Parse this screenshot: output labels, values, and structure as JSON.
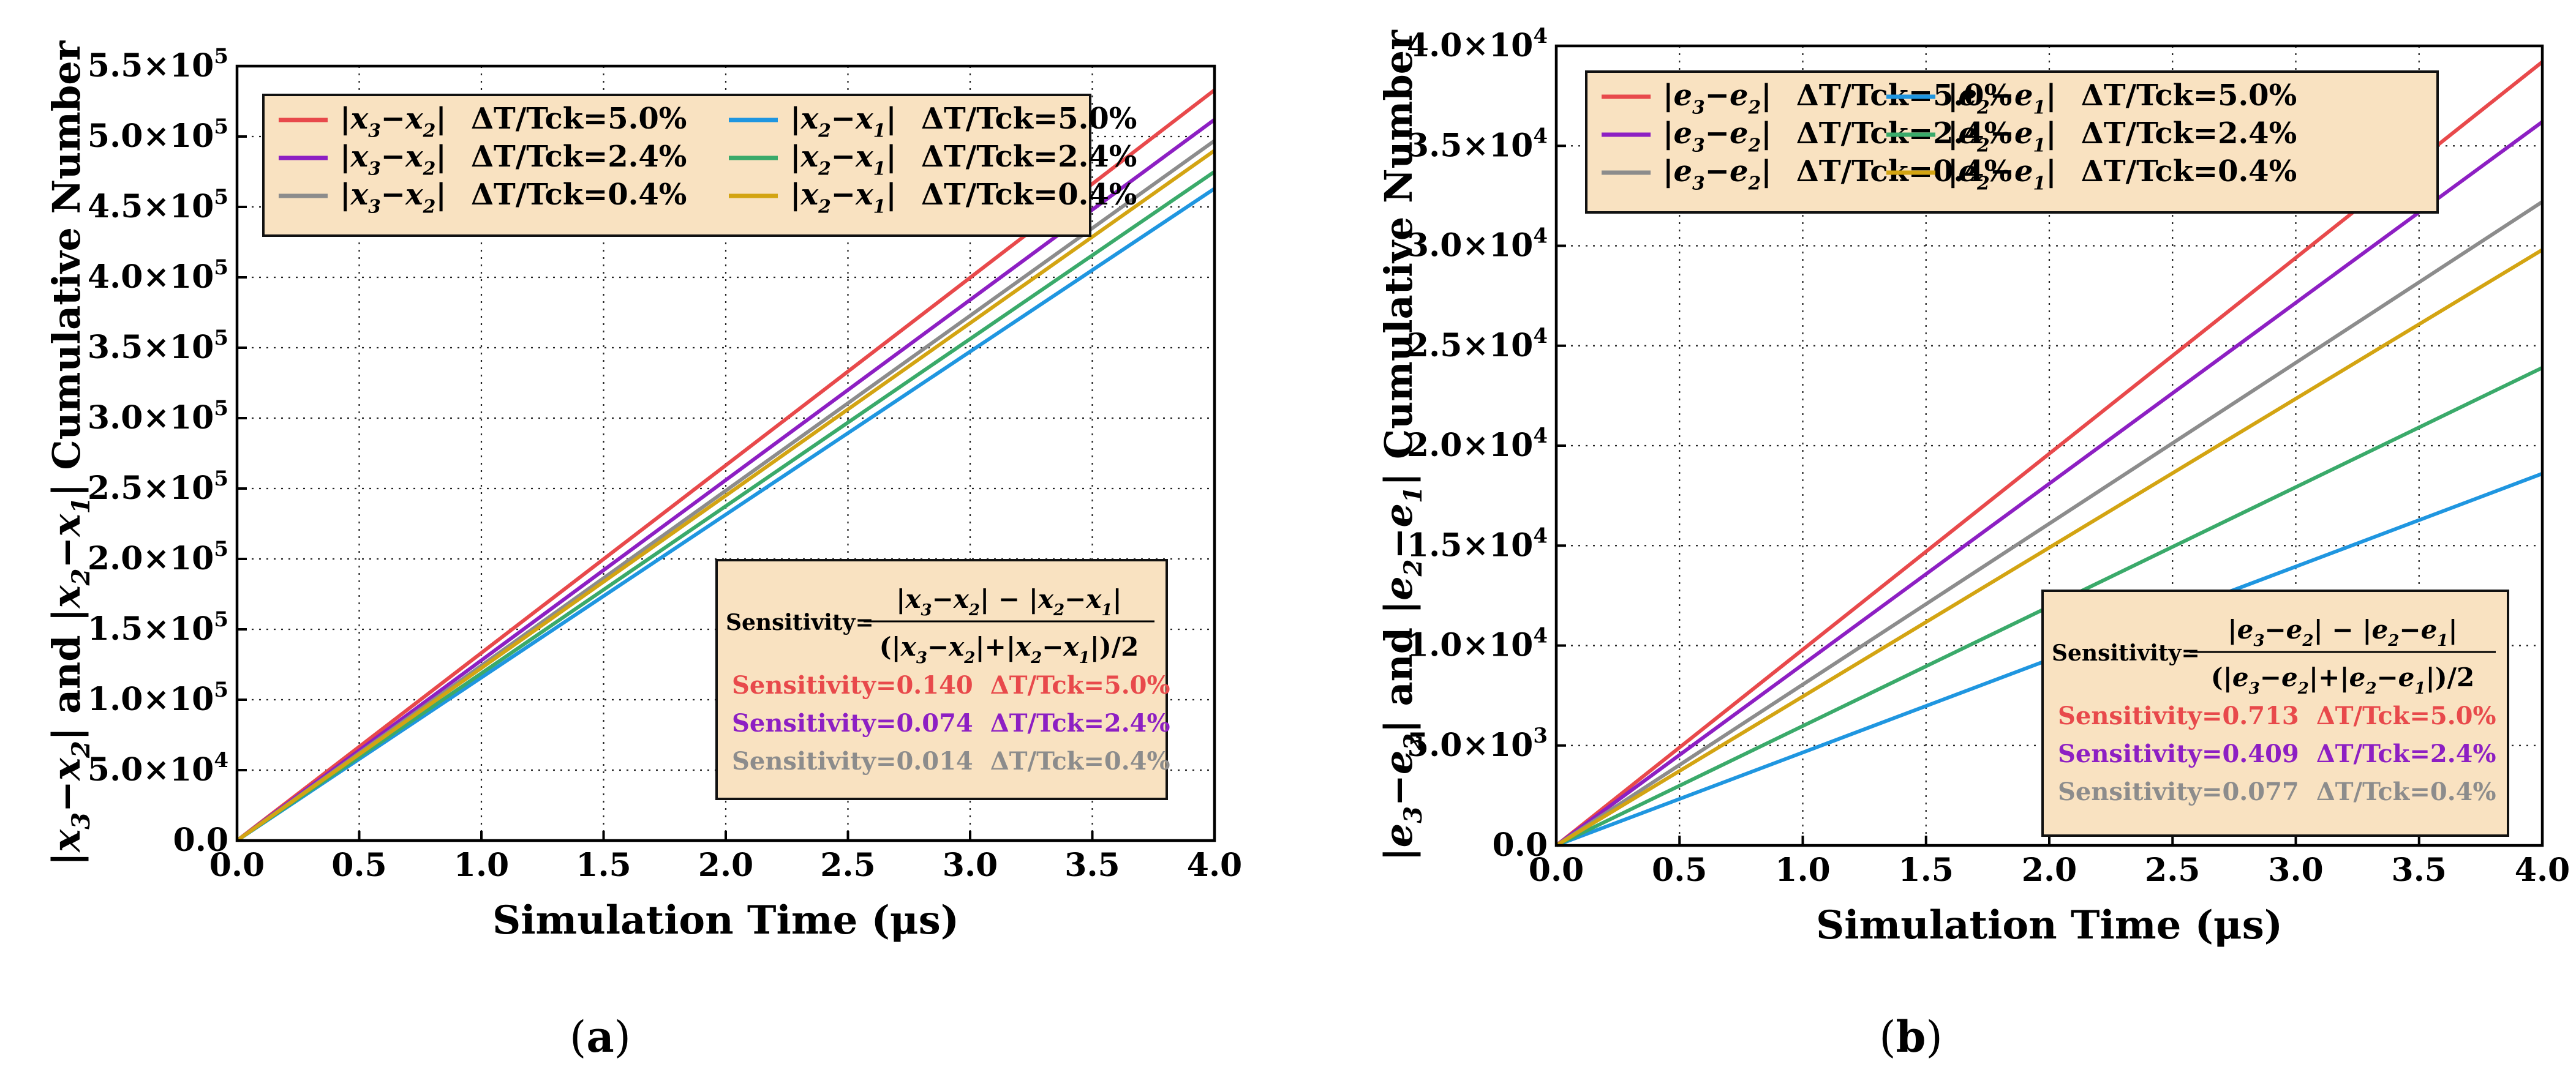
{
  "chart_data": [
    {
      "panel_label": "(a)",
      "type": "line",
      "xlabel": "Simulation Time (μs)",
      "ylabel": {
        "parts": [
          {
            "t": "|",
            "it": false
          },
          {
            "t": "x",
            "it": true
          },
          {
            "t": "3",
            "it": true,
            "sub": true
          },
          {
            "t": "−",
            "it": false
          },
          {
            "t": "x",
            "it": true
          },
          {
            "t": "2",
            "it": true,
            "sub": true
          },
          {
            "t": "| and |",
            "it": false
          },
          {
            "t": "x",
            "it": true
          },
          {
            "t": "2",
            "it": true,
            "sub": true
          },
          {
            "t": "−",
            "it": false
          },
          {
            "t": "x",
            "it": true
          },
          {
            "t": "1",
            "it": true,
            "sub": true
          },
          {
            "t": "| Cumulative Number",
            "it": false
          }
        ]
      },
      "xlim": [
        0,
        4
      ],
      "ylim": [
        0,
        550000
      ],
      "xticks": [
        0,
        0.5,
        1,
        1.5,
        2,
        2.5,
        3,
        3.5,
        4
      ],
      "xtick_labels": [
        "0.0",
        "0.5",
        "1.0",
        "1.5",
        "2.0",
        "2.5",
        "3.0",
        "3.5",
        "4.0"
      ],
      "yticks": [
        0,
        50000,
        100000,
        150000,
        200000,
        250000,
        300000,
        350000,
        400000,
        450000,
        500000,
        550000
      ],
      "ytick_labels": [
        {
          "m": "0.0",
          "e": ""
        },
        {
          "m": "5.0×10",
          "e": "4"
        },
        {
          "m": "1.0×10",
          "e": "5"
        },
        {
          "m": "1.5×10",
          "e": "5"
        },
        {
          "m": "2.0×10",
          "e": "5"
        },
        {
          "m": "2.5×10",
          "e": "5"
        },
        {
          "m": "3.0×10",
          "e": "5"
        },
        {
          "m": "3.5×10",
          "e": "5"
        },
        {
          "m": "4.0×10",
          "e": "5"
        },
        {
          "m": "4.5×10",
          "e": "5"
        },
        {
          "m": "5.0×10",
          "e": "5"
        },
        {
          "m": "5.5×10",
          "e": "5"
        }
      ],
      "grid": true,
      "legend_position": "top",
      "series": [
        {
          "legend": {
            "v1": "x",
            "s1": "3",
            "v2": "x",
            "s2": "2",
            "cond": "ΔT/Tck=5.0%"
          },
          "color": "#e8494b",
          "x": [
            0,
            4
          ],
          "y": [
            0,
            533000
          ]
        },
        {
          "legend": {
            "v1": "x",
            "s1": "3",
            "v2": "x",
            "s2": "2",
            "cond": "ΔT/Tck=2.4%"
          },
          "color": "#8d1fc3",
          "x": [
            0,
            4
          ],
          "y": [
            0,
            512000
          ]
        },
        {
          "legend": {
            "v1": "x",
            "s1": "3",
            "v2": "x",
            "s2": "2",
            "cond": "ΔT/Tck=0.4%"
          },
          "color": "#8c8c8c",
          "x": [
            0,
            4
          ],
          "y": [
            0,
            497000
          ]
        },
        {
          "legend": {
            "v1": "x",
            "s1": "2",
            "v2": "x",
            "s2": "1",
            "cond": "ΔT/Tck=5.0%"
          },
          "color": "#1f96e0",
          "x": [
            0,
            4
          ],
          "y": [
            0,
            463000
          ]
        },
        {
          "legend": {
            "v1": "x",
            "s1": "2",
            "v2": "x",
            "s2": "1",
            "cond": "ΔT/Tck=2.4%"
          },
          "color": "#3aaa6a",
          "x": [
            0,
            4
          ],
          "y": [
            0,
            475000
          ]
        },
        {
          "legend": {
            "v1": "x",
            "s1": "2",
            "v2": "x",
            "s2": "1",
            "cond": "ΔT/Tck=0.4%"
          },
          "color": "#d3a412",
          "x": [
            0,
            4
          ],
          "y": [
            0,
            490000
          ]
        }
      ],
      "sensitivity_box": {
        "prefix": "Sensitivity=",
        "numerator": {
          "v1": "x",
          "s1": "3",
          "v2": "x",
          "s2": "2",
          "v3": "x",
          "s3": "2",
          "v4": "x",
          "s4": "1"
        },
        "denominator": {
          "v1": "x",
          "s1": "3",
          "v2": "x",
          "s2": "2",
          "v3": "x",
          "s3": "2",
          "v4": "x",
          "s4": "1"
        },
        "values": [
          {
            "label": "Sensitivity=0.140",
            "cond": "ΔT/Tck=5.0%",
            "color": "#e8494b"
          },
          {
            "label": "Sensitivity=0.074",
            "cond": "ΔT/Tck=2.4%",
            "color": "#8d1fc3"
          },
          {
            "label": "Sensitivity=0.014",
            "cond": "ΔT/Tck=0.4%",
            "color": "#8c8c8c"
          }
        ]
      }
    },
    {
      "panel_label": "(b)",
      "type": "line",
      "xlabel": "Simulation Time (μs)",
      "ylabel": {
        "parts": [
          {
            "t": "|",
            "it": false
          },
          {
            "t": "e",
            "it": true
          },
          {
            "t": "3",
            "it": true,
            "sub": true
          },
          {
            "t": "−",
            "it": false
          },
          {
            "t": "e",
            "it": true
          },
          {
            "t": "2",
            "it": true,
            "sub": true
          },
          {
            "t": "| and |",
            "it": false
          },
          {
            "t": "e",
            "it": true
          },
          {
            "t": "2",
            "it": true,
            "sub": true
          },
          {
            "t": "−",
            "it": false
          },
          {
            "t": "e",
            "it": true
          },
          {
            "t": "1",
            "it": true,
            "sub": true
          },
          {
            "t": "| Cumulative Number",
            "it": false
          }
        ]
      },
      "xlim": [
        0,
        4
      ],
      "ylim": [
        0,
        40000
      ],
      "xticks": [
        0,
        0.5,
        1,
        1.5,
        2,
        2.5,
        3,
        3.5,
        4
      ],
      "xtick_labels": [
        "0.0",
        "0.5",
        "1.0",
        "1.5",
        "2.0",
        "2.5",
        "3.0",
        "3.5",
        "4.0"
      ],
      "yticks": [
        0,
        5000,
        10000,
        15000,
        20000,
        25000,
        30000,
        35000,
        40000
      ],
      "ytick_labels": [
        {
          "m": "0.0",
          "e": ""
        },
        {
          "m": "5.0×10",
          "e": "3"
        },
        {
          "m": "1.0×10",
          "e": "4"
        },
        {
          "m": "1.5×10",
          "e": "4"
        },
        {
          "m": "2.0×10",
          "e": "4"
        },
        {
          "m": "2.5×10",
          "e": "4"
        },
        {
          "m": "3.0×10",
          "e": "4"
        },
        {
          "m": "3.5×10",
          "e": "4"
        },
        {
          "m": "4.0×10",
          "e": "4"
        }
      ],
      "grid": true,
      "legend_position": "top",
      "series": [
        {
          "legend": {
            "v1": "e",
            "s1": "3",
            "v2": "e",
            "s2": "2",
            "cond": "ΔT/Tck=5.0%"
          },
          "color": "#e8494b",
          "x": [
            0,
            4
          ],
          "y": [
            0,
            39200
          ]
        },
        {
          "legend": {
            "v1": "e",
            "s1": "3",
            "v2": "e",
            "s2": "2",
            "cond": "ΔT/Tck=2.4%"
          },
          "color": "#8d1fc3",
          "x": [
            0,
            4
          ],
          "y": [
            0,
            36200
          ]
        },
        {
          "legend": {
            "v1": "e",
            "s1": "3",
            "v2": "e",
            "s2": "2",
            "cond": "ΔT/Tck=0.4%"
          },
          "color": "#8c8c8c",
          "x": [
            0,
            4
          ],
          "y": [
            0,
            32200
          ]
        },
        {
          "legend": {
            "v1": "e",
            "s1": "2",
            "v2": "e",
            "s2": "1",
            "cond": "ΔT/Tck=5.0%"
          },
          "color": "#1f96e0",
          "x": [
            0,
            4
          ],
          "y": [
            0,
            18600
          ]
        },
        {
          "legend": {
            "v1": "e",
            "s1": "2",
            "v2": "e",
            "s2": "1",
            "cond": "ΔT/Tck=2.4%"
          },
          "color": "#3aaa6a",
          "x": [
            0,
            4
          ],
          "y": [
            0,
            23900
          ]
        },
        {
          "legend": {
            "v1": "e",
            "s1": "2",
            "v2": "e",
            "s2": "1",
            "cond": "ΔT/Tck=0.4%"
          },
          "color": "#d3a412",
          "x": [
            0,
            4
          ],
          "y": [
            0,
            29800
          ]
        }
      ],
      "sensitivity_box": {
        "prefix": "Sensitivity=",
        "numerator": {
          "v1": "e",
          "s1": "3",
          "v2": "e",
          "s2": "2",
          "v3": "e",
          "s3": "2",
          "v4": "e",
          "s4": "1"
        },
        "denominator": {
          "v1": "e",
          "s1": "3",
          "v2": "e",
          "s2": "2",
          "v3": "e",
          "s3": "2",
          "v4": "e",
          "s4": "1"
        },
        "values": [
          {
            "label": "Sensitivity=0.713",
            "cond": "ΔT/Tck=5.0%",
            "color": "#e8494b"
          },
          {
            "label": "Sensitivity=0.409",
            "cond": "ΔT/Tck=2.4%",
            "color": "#8d1fc3"
          },
          {
            "label": "Sensitivity=0.077",
            "cond": "ΔT/Tck=0.4%",
            "color": "#8c8c8c"
          }
        ]
      }
    }
  ]
}
